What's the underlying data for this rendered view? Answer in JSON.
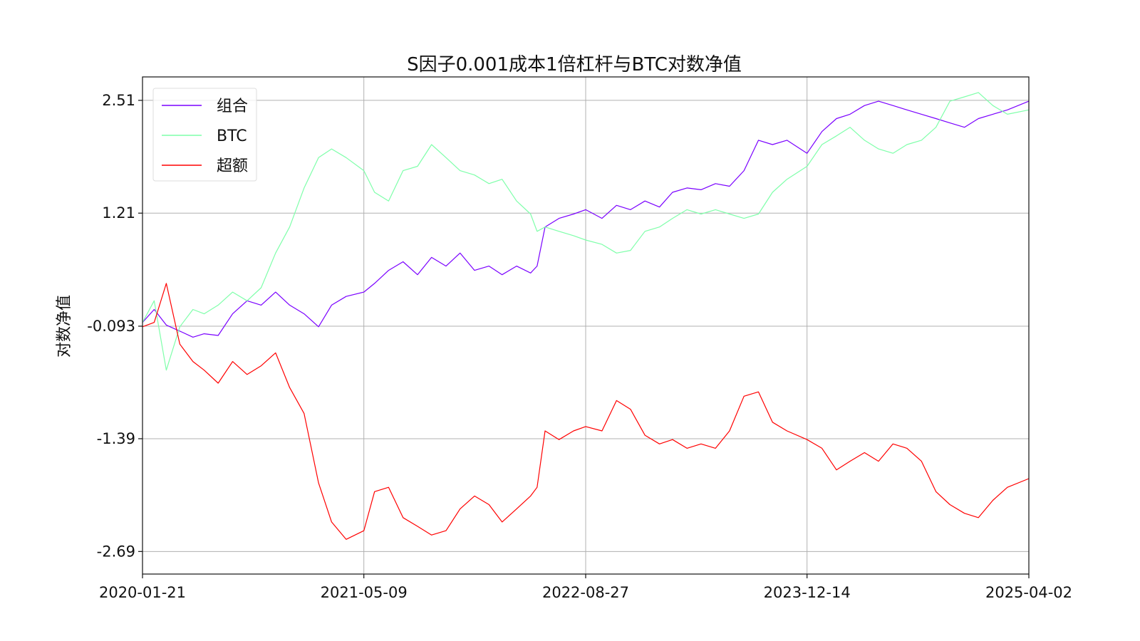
{
  "chart_data": {
    "type": "line",
    "title": "S因子0.001成本1倍杠杆与BTC对数净值",
    "xlabel": "",
    "ylabel": "对数净值",
    "x_ticks": [
      "2020-01-21",
      "2021-05-09",
      "2022-08-27",
      "2023-12-14",
      "2025-04-02"
    ],
    "y_ticks": [
      "2.51",
      "1.21",
      "-0.093",
      "-1.39",
      "-2.69"
    ],
    "xlim": [
      "2020-01-21",
      "2025-04-02"
    ],
    "ylim": [
      -2.95,
      2.78
    ],
    "grid": true,
    "legend_position": "upper-left",
    "series": [
      {
        "name": "组合",
        "color": "#7a00ff",
        "x": [
          "2020-01-21",
          "2020-02-15",
          "2020-03-12",
          "2020-04-10",
          "2020-05-08",
          "2020-06-01",
          "2020-07-01",
          "2020-08-01",
          "2020-09-01",
          "2020-10-01",
          "2020-11-01",
          "2020-12-01",
          "2021-01-01",
          "2021-02-01",
          "2021-03-01",
          "2021-04-01",
          "2021-05-09",
          "2021-06-01",
          "2021-07-01",
          "2021-08-01",
          "2021-09-01",
          "2021-10-01",
          "2021-11-01",
          "2021-12-01",
          "2022-01-01",
          "2022-02-01",
          "2022-03-01",
          "2022-04-01",
          "2022-05-01",
          "2022-05-15",
          "2022-06-01",
          "2022-07-01",
          "2022-08-01",
          "2022-08-27",
          "2022-10-01",
          "2022-11-01",
          "2022-12-01",
          "2023-01-01",
          "2023-02-01",
          "2023-03-01",
          "2023-04-01",
          "2023-05-01",
          "2023-06-01",
          "2023-07-01",
          "2023-08-01",
          "2023-09-01",
          "2023-10-01",
          "2023-11-01",
          "2023-12-14",
          "2024-01-15",
          "2024-02-15",
          "2024-03-15",
          "2024-04-15",
          "2024-05-15",
          "2024-06-15",
          "2024-07-15",
          "2024-08-15",
          "2024-09-15",
          "2024-10-15",
          "2024-11-15",
          "2024-12-15",
          "2025-01-15",
          "2025-02-15",
          "2025-04-02"
        ],
        "values": [
          -0.05,
          0.1,
          -0.08,
          -0.15,
          -0.22,
          -0.18,
          -0.2,
          0.05,
          0.2,
          0.15,
          0.3,
          0.15,
          0.05,
          -0.1,
          0.15,
          0.25,
          0.3,
          0.4,
          0.55,
          0.65,
          0.5,
          0.7,
          0.6,
          0.75,
          0.55,
          0.6,
          0.5,
          0.6,
          0.52,
          0.6,
          1.05,
          1.15,
          1.2,
          1.25,
          1.15,
          1.3,
          1.25,
          1.35,
          1.28,
          1.45,
          1.5,
          1.48,
          1.55,
          1.52,
          1.7,
          2.05,
          2.0,
          2.05,
          1.9,
          2.15,
          2.3,
          2.35,
          2.45,
          2.5,
          2.45,
          2.4,
          2.35,
          2.3,
          2.25,
          2.2,
          2.3,
          2.35,
          2.4,
          2.5
        ]
      },
      {
        "name": "BTC",
        "color": "#7fffaa",
        "x": [
          "2020-01-21",
          "2020-02-15",
          "2020-03-12",
          "2020-04-10",
          "2020-05-08",
          "2020-06-01",
          "2020-07-01",
          "2020-08-01",
          "2020-09-01",
          "2020-10-01",
          "2020-11-01",
          "2020-12-01",
          "2021-01-01",
          "2021-02-01",
          "2021-03-01",
          "2021-04-01",
          "2021-05-09",
          "2021-06-01",
          "2021-07-01",
          "2021-08-01",
          "2021-09-01",
          "2021-10-01",
          "2021-11-01",
          "2021-12-01",
          "2022-01-01",
          "2022-02-01",
          "2022-03-01",
          "2022-04-01",
          "2022-05-01",
          "2022-05-15",
          "2022-06-01",
          "2022-07-01",
          "2022-08-01",
          "2022-08-27",
          "2022-10-01",
          "2022-11-01",
          "2022-12-01",
          "2023-01-01",
          "2023-02-01",
          "2023-03-01",
          "2023-04-01",
          "2023-05-01",
          "2023-06-01",
          "2023-07-01",
          "2023-08-01",
          "2023-09-01",
          "2023-10-01",
          "2023-11-01",
          "2023-12-14",
          "2024-01-15",
          "2024-02-15",
          "2024-03-15",
          "2024-04-15",
          "2024-05-15",
          "2024-06-15",
          "2024-07-15",
          "2024-08-15",
          "2024-09-15",
          "2024-10-15",
          "2024-11-15",
          "2024-12-15",
          "2025-01-15",
          "2025-02-15",
          "2025-04-02"
        ],
        "values": [
          -0.05,
          0.2,
          -0.6,
          -0.1,
          0.1,
          0.05,
          0.15,
          0.3,
          0.2,
          0.35,
          0.75,
          1.05,
          1.5,
          1.85,
          1.95,
          1.85,
          1.7,
          1.45,
          1.35,
          1.7,
          1.75,
          2.0,
          1.85,
          1.7,
          1.65,
          1.55,
          1.6,
          1.35,
          1.2,
          1.0,
          1.05,
          1.0,
          0.95,
          0.9,
          0.85,
          0.75,
          0.78,
          1.0,
          1.05,
          1.15,
          1.25,
          1.2,
          1.25,
          1.2,
          1.15,
          1.2,
          1.45,
          1.6,
          1.75,
          2.0,
          2.1,
          2.2,
          2.05,
          1.95,
          1.9,
          2.0,
          2.05,
          2.2,
          2.5,
          2.55,
          2.6,
          2.45,
          2.35,
          2.4
        ]
      },
      {
        "name": "超额",
        "color": "#ff0000",
        "x": [
          "2020-01-21",
          "2020-02-15",
          "2020-03-12",
          "2020-04-10",
          "2020-05-08",
          "2020-06-01",
          "2020-07-01",
          "2020-08-01",
          "2020-09-01",
          "2020-10-01",
          "2020-11-01",
          "2020-12-01",
          "2021-01-01",
          "2021-02-01",
          "2021-03-01",
          "2021-04-01",
          "2021-05-09",
          "2021-06-01",
          "2021-07-01",
          "2021-08-01",
          "2021-09-01",
          "2021-10-01",
          "2021-11-01",
          "2021-12-01",
          "2022-01-01",
          "2022-02-01",
          "2022-03-01",
          "2022-04-01",
          "2022-05-01",
          "2022-05-15",
          "2022-06-01",
          "2022-07-01",
          "2022-08-01",
          "2022-08-27",
          "2022-10-01",
          "2022-11-01",
          "2022-12-01",
          "2023-01-01",
          "2023-02-01",
          "2023-03-01",
          "2023-04-01",
          "2023-05-01",
          "2023-06-01",
          "2023-07-01",
          "2023-08-01",
          "2023-09-01",
          "2023-10-01",
          "2023-11-01",
          "2023-12-14",
          "2024-01-15",
          "2024-02-15",
          "2024-03-15",
          "2024-04-15",
          "2024-05-15",
          "2024-06-15",
          "2024-07-15",
          "2024-08-15",
          "2024-09-15",
          "2024-10-15",
          "2024-11-15",
          "2024-12-15",
          "2025-01-15",
          "2025-02-15",
          "2025-04-02"
        ],
        "values": [
          -0.1,
          -0.05,
          0.4,
          -0.3,
          -0.5,
          -0.6,
          -0.75,
          -0.5,
          -0.65,
          -0.55,
          -0.4,
          -0.8,
          -1.1,
          -1.9,
          -2.35,
          -2.55,
          -2.45,
          -2.0,
          -1.95,
          -2.3,
          -2.4,
          -2.5,
          -2.45,
          -2.2,
          -2.05,
          -2.15,
          -2.35,
          -2.2,
          -2.05,
          -1.95,
          -1.3,
          -1.4,
          -1.3,
          -1.25,
          -1.3,
          -0.95,
          -1.05,
          -1.35,
          -1.45,
          -1.4,
          -1.5,
          -1.45,
          -1.5,
          -1.3,
          -0.9,
          -0.85,
          -1.2,
          -1.3,
          -1.4,
          -1.5,
          -1.75,
          -1.65,
          -1.55,
          -1.65,
          -1.45,
          -1.5,
          -1.65,
          -2.0,
          -2.15,
          -2.25,
          -2.3,
          -2.1,
          -1.95,
          -1.85
        ]
      }
    ]
  }
}
